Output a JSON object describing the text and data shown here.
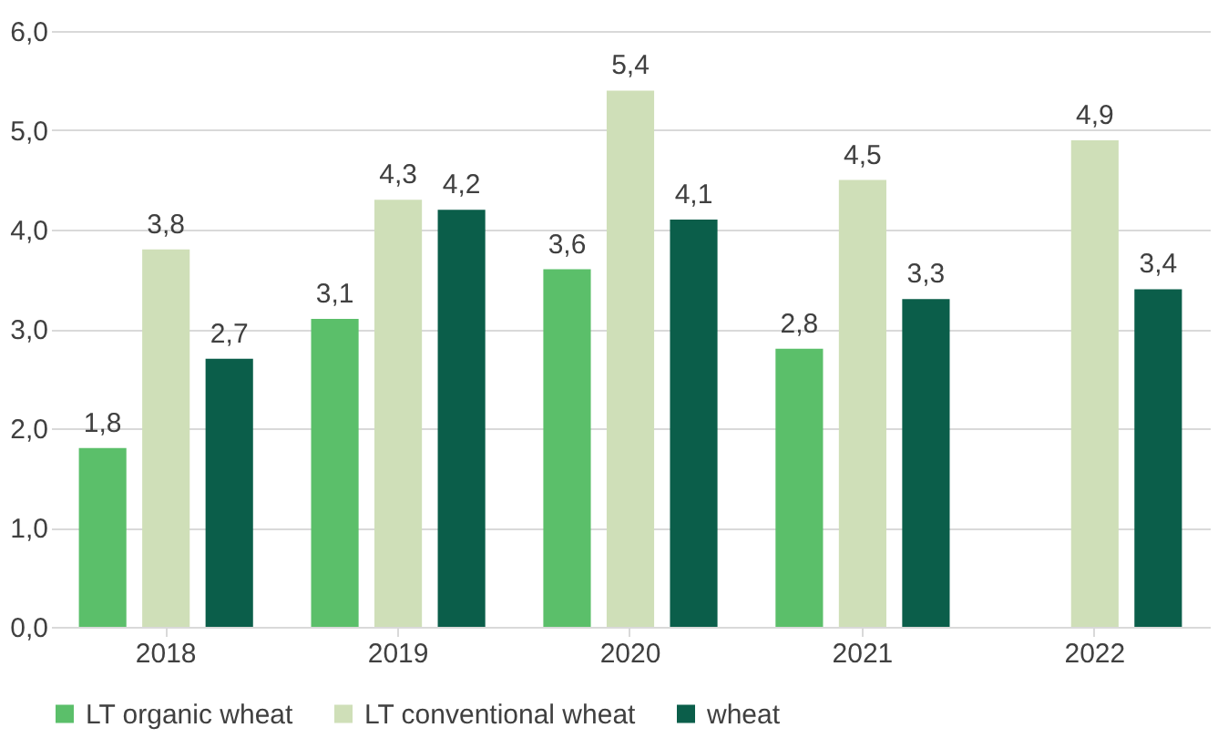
{
  "chart_data": {
    "type": "bar",
    "categories": [
      "2018",
      "2019",
      "2020",
      "2021",
      "2022"
    ],
    "series": [
      {
        "name": "LT organic wheat",
        "color": "#5bbf6a",
        "values": [
          1.8,
          3.1,
          3.6,
          2.8,
          null
        ],
        "value_labels": [
          "1,8",
          "3,1",
          "3,6",
          "2,8",
          null
        ]
      },
      {
        "name": "LT conventional wheat",
        "color": "#cfdfb8",
        "values": [
          3.8,
          4.3,
          5.4,
          4.5,
          4.9
        ],
        "value_labels": [
          "3,8",
          "4,3",
          "5,4",
          "4,5",
          "4,9"
        ]
      },
      {
        "name": "wheat",
        "color": "#0b5e4a",
        "values": [
          2.7,
          4.2,
          4.1,
          3.3,
          3.4
        ],
        "value_labels": [
          "2,7",
          "4,2",
          "4,1",
          "3,3",
          "3,4"
        ]
      }
    ],
    "ylim": [
      0,
      6
    ],
    "yticks": [
      {
        "value": 0,
        "label": "0,0"
      },
      {
        "value": 1,
        "label": "1,0"
      },
      {
        "value": 2,
        "label": "2,0"
      },
      {
        "value": 3,
        "label": "3,0"
      },
      {
        "value": 4,
        "label": "4,0"
      },
      {
        "value": 5,
        "label": "5,0"
      },
      {
        "value": 6,
        "label": "6,0"
      }
    ],
    "grid": "y",
    "legend": "bottom"
  }
}
